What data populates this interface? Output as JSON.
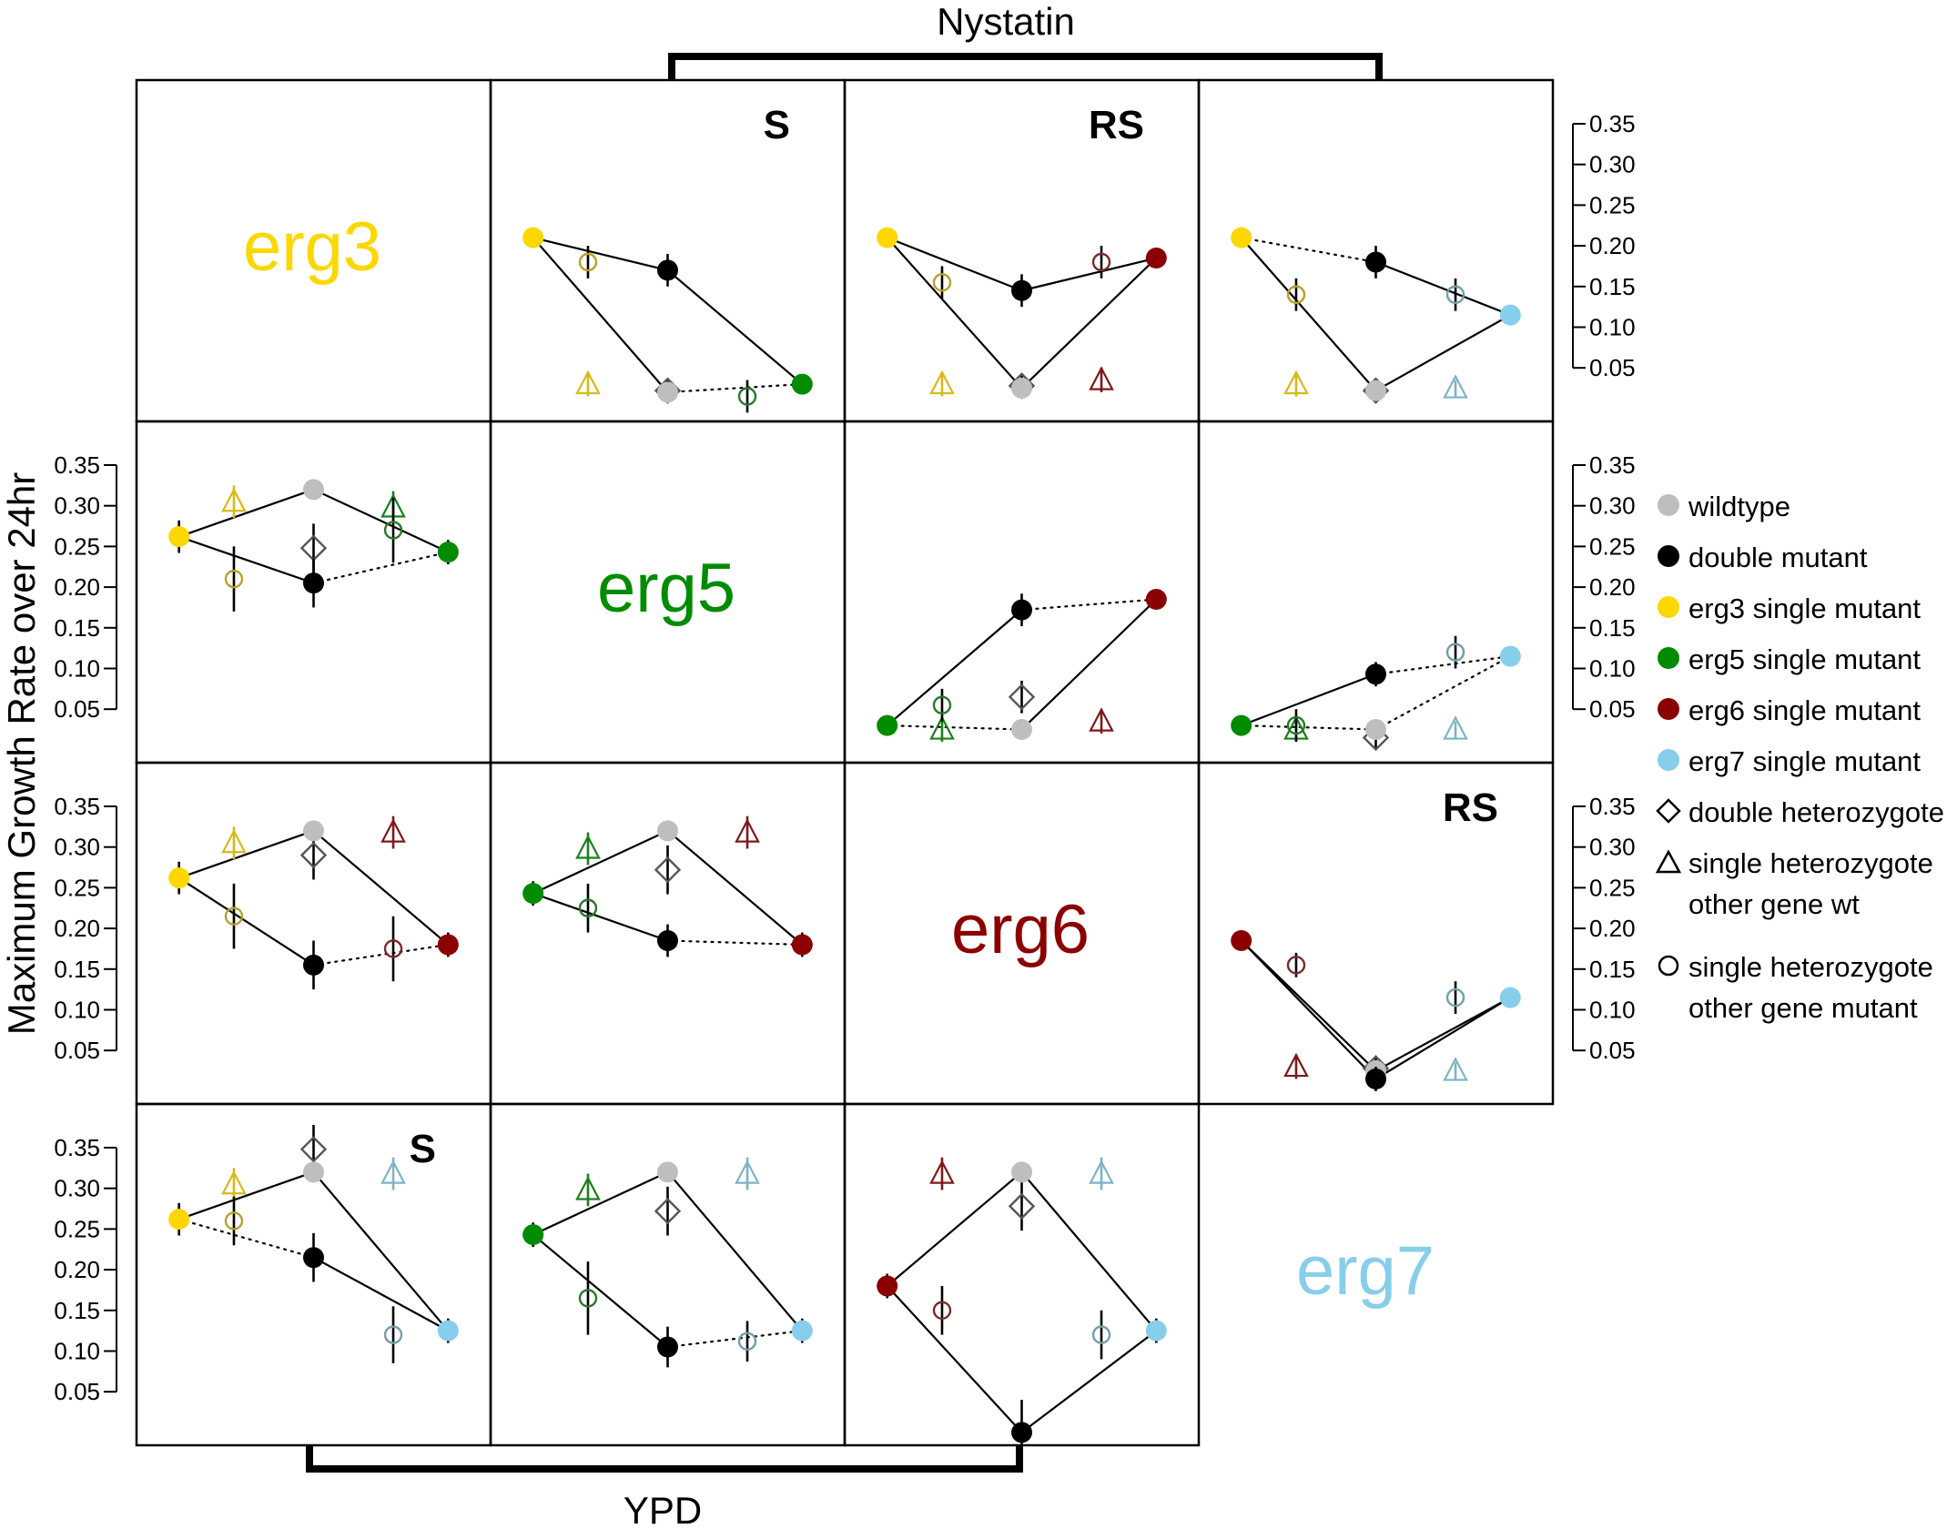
{
  "figure": {
    "y_axis_label": "Maximum Growth Rate over 24hr",
    "top_bracket_label": "Nystatin",
    "bottom_bracket_label": "YPD",
    "y_ticks": [
      "0.05",
      "0.10",
      "0.15",
      "0.20",
      "0.25",
      "0.30",
      "0.35"
    ],
    "ylim": [
      0,
      0.39
    ],
    "gene_labels": [
      {
        "name": "erg3",
        "color": "#ffd700"
      },
      {
        "name": "erg5",
        "color": "#008b00"
      },
      {
        "name": "erg6",
        "color": "#8b0000"
      },
      {
        "name": "erg7",
        "color": "#87ceeb"
      }
    ]
  },
  "legend": {
    "entries": [
      {
        "label": "wildtype",
        "symbol": "filled-circle",
        "color": "#bebebe"
      },
      {
        "label": "double mutant",
        "symbol": "filled-circle",
        "color": "#000000"
      },
      {
        "label": "erg3 single mutant",
        "symbol": "filled-circle",
        "color": "#ffd700"
      },
      {
        "label": "erg5 single mutant",
        "symbol": "filled-circle",
        "color": "#008b00"
      },
      {
        "label": "erg6 single mutant",
        "symbol": "filled-circle",
        "color": "#8b0000"
      },
      {
        "label": "erg7 single mutant",
        "symbol": "filled-circle",
        "color": "#87ceeb"
      },
      {
        "label": "double heterozygote",
        "symbol": "diamond",
        "color": "#000000"
      },
      {
        "label": "single heterozygote",
        "label2": "other gene wt",
        "symbol": "triangle",
        "color": "#000000"
      },
      {
        "label": "single heterozygote",
        "label2": "other gene mutant",
        "symbol": "open-circle",
        "color": "#000000"
      }
    ]
  },
  "chart_data": [
    {
      "type": "scatter",
      "environment": "Nystatin",
      "genes": [
        "erg3",
        "erg5"
      ],
      "annotation": "S",
      "A": {
        "y": 0.21,
        "e": 0.01
      },
      "AB": {
        "y": 0.17,
        "e": 0.02
      },
      "B": {
        "y": 0.03,
        "e": 0.01
      },
      "W": {
        "y": 0.02,
        "e": 0.01
      },
      "h_a": {
        "y": 0.18,
        "e": 0.02
      },
      "h_b": {
        "y": 0.015,
        "e": 0.02
      },
      "t_a": {
        "y": 0.03,
        "e": 0.015
      },
      "t_b": null,
      "d": {
        "y": 0.022,
        "e": 0.015
      },
      "lines": {
        "a_ab": "solid",
        "ab_b": "solid",
        "a_w": "solid",
        "w_b": "dotted"
      }
    },
    {
      "type": "scatter",
      "environment": "Nystatin",
      "genes": [
        "erg3",
        "erg6"
      ],
      "annotation": "RS",
      "A": {
        "y": 0.21,
        "e": 0.01
      },
      "AB": {
        "y": 0.145,
        "e": 0.02
      },
      "B": {
        "y": 0.185,
        "e": 0.01
      },
      "W": {
        "y": 0.025,
        "e": 0.01
      },
      "h_a": {
        "y": 0.155,
        "e": 0.02
      },
      "h_b": {
        "y": 0.18,
        "e": 0.02
      },
      "t_a": {
        "y": 0.03,
        "e": 0.015
      },
      "t_b": {
        "y": 0.035,
        "e": 0.015
      },
      "d": {
        "y": 0.028,
        "e": 0.015
      },
      "lines": {
        "a_ab": "solid",
        "ab_b": "solid",
        "a_w": "solid",
        "w_b": "solid"
      }
    },
    {
      "type": "scatter",
      "environment": "Nystatin",
      "genes": [
        "erg3",
        "erg7"
      ],
      "annotation": "",
      "A": {
        "y": 0.21,
        "e": 0.01
      },
      "AB": {
        "y": 0.18,
        "e": 0.02
      },
      "B": {
        "y": 0.115,
        "e": 0.01
      },
      "W": {
        "y": 0.022,
        "e": 0.01
      },
      "h_a": {
        "y": 0.14,
        "e": 0.02
      },
      "h_b": {
        "y": 0.14,
        "e": 0.02
      },
      "t_a": {
        "y": 0.03,
        "e": 0.015
      },
      "t_b": {
        "y": 0.025,
        "e": 0.01
      },
      "d": {
        "y": 0.022,
        "e": 0.015
      },
      "lines": {
        "a_ab": "dotted",
        "ab_b": "solid",
        "a_w": "solid",
        "w_b": "solid"
      }
    },
    {
      "type": "scatter",
      "environment": "YPD",
      "genes": [
        "erg3",
        "erg5"
      ],
      "annotation": "",
      "A": {
        "y": 0.262,
        "e": 0.02
      },
      "AB": {
        "y": 0.205,
        "e": 0.03
      },
      "B": {
        "y": 0.243,
        "e": 0.015
      },
      "W": {
        "y": 0.32,
        "e": 0.01
      },
      "h_a": {
        "y": 0.21,
        "e": 0.04
      },
      "h_b": {
        "y": 0.27,
        "e": 0.04
      },
      "t_a": {
        "y": 0.305,
        "e": 0.02
      },
      "t_b": {
        "y": 0.298,
        "e": 0.02
      },
      "d": {
        "y": 0.248,
        "e": 0.03
      },
      "lines": {
        "a_ab": "solid",
        "ab_b": "dotted",
        "a_w": "solid",
        "w_b": "solid"
      }
    },
    {
      "type": "scatter",
      "environment": "Nystatin",
      "genes": [
        "erg5",
        "erg6"
      ],
      "annotation": "",
      "A": {
        "y": 0.03,
        "e": 0.01
      },
      "AB": {
        "y": 0.172,
        "e": 0.02
      },
      "B": {
        "y": 0.185,
        "e": 0.01
      },
      "W": {
        "y": 0.025,
        "e": 0.01
      },
      "h_a": {
        "y": 0.055,
        "e": 0.02
      },
      "h_b": null,
      "t_a": {
        "y": 0.025,
        "e": 0.015
      },
      "t_b": {
        "y": 0.035,
        "e": 0.015
      },
      "d": {
        "y": 0.065,
        "e": 0.02
      },
      "lines": {
        "a_ab": "solid",
        "ab_b": "dotted",
        "a_w": "dotted",
        "w_b": "solid"
      }
    },
    {
      "type": "scatter",
      "environment": "Nystatin",
      "genes": [
        "erg5",
        "erg7"
      ],
      "annotation": "",
      "A": {
        "y": 0.03,
        "e": 0.01
      },
      "AB": {
        "y": 0.093,
        "e": 0.015
      },
      "B": {
        "y": 0.115,
        "e": 0.01
      },
      "W": {
        "y": 0.025,
        "e": 0.01
      },
      "h_a": {
        "y": 0.03,
        "e": 0.02
      },
      "h_b": {
        "y": 0.12,
        "e": 0.02
      },
      "t_a": {
        "y": 0.025,
        "e": 0.015
      },
      "t_b": {
        "y": 0.025,
        "e": 0.01
      },
      "d": {
        "y": 0.015,
        "e": 0.015
      },
      "lines": {
        "a_ab": "solid",
        "ab_b": "dotted",
        "a_w": "dotted",
        "w_b": "dotted"
      }
    },
    {
      "type": "scatter",
      "environment": "YPD",
      "genes": [
        "erg3",
        "erg6"
      ],
      "annotation": "",
      "A": {
        "y": 0.262,
        "e": 0.02
      },
      "AB": {
        "y": 0.155,
        "e": 0.03
      },
      "B": {
        "y": 0.18,
        "e": 0.015
      },
      "W": {
        "y": 0.32,
        "e": 0.01
      },
      "h_a": {
        "y": 0.215,
        "e": 0.04
      },
      "h_b": {
        "y": 0.175,
        "e": 0.04
      },
      "t_a": {
        "y": 0.305,
        "e": 0.02
      },
      "t_b": {
        "y": 0.318,
        "e": 0.02
      },
      "d": {
        "y": 0.29,
        "e": 0.03
      },
      "lines": {
        "a_ab": "solid",
        "ab_b": "dotted",
        "a_w": "solid",
        "w_b": "solid"
      }
    },
    {
      "type": "scatter",
      "environment": "YPD",
      "genes": [
        "erg5",
        "erg6"
      ],
      "annotation": "",
      "A": {
        "y": 0.243,
        "e": 0.015
      },
      "AB": {
        "y": 0.185,
        "e": 0.02
      },
      "B": {
        "y": 0.18,
        "e": 0.015
      },
      "W": {
        "y": 0.32,
        "e": 0.01
      },
      "h_a": {
        "y": 0.225,
        "e": 0.03
      },
      "h_b": null,
      "t_a": {
        "y": 0.298,
        "e": 0.02
      },
      "t_b": {
        "y": 0.318,
        "e": 0.02
      },
      "d": {
        "y": 0.272,
        "e": 0.03
      },
      "lines": {
        "a_ab": "solid",
        "ab_b": "dotted",
        "a_w": "solid",
        "w_b": "solid"
      }
    },
    {
      "type": "scatter",
      "environment": "Nystatin",
      "genes": [
        "erg6",
        "erg7"
      ],
      "annotation": "RS",
      "A": {
        "y": 0.185,
        "e": 0.01
      },
      "AB": {
        "y": 0.015,
        "e": 0.015
      },
      "B": {
        "y": 0.115,
        "e": 0.01
      },
      "W": {
        "y": 0.025,
        "e": 0.01
      },
      "h_a": {
        "y": 0.155,
        "e": 0.015
      },
      "h_b": {
        "y": 0.115,
        "e": 0.02
      },
      "t_a": {
        "y": 0.03,
        "e": 0.015
      },
      "t_b": {
        "y": 0.025,
        "e": 0.01
      },
      "d": {
        "y": 0.028,
        "e": 0.015
      },
      "lines": {
        "a_ab": "solid",
        "ab_b": "solid",
        "a_w": "solid",
        "w_b": "solid"
      }
    },
    {
      "type": "scatter",
      "environment": "YPD",
      "genes": [
        "erg3",
        "erg7"
      ],
      "annotation": "S",
      "A": {
        "y": 0.262,
        "e": 0.02
      },
      "AB": {
        "y": 0.215,
        "e": 0.03
      },
      "B": {
        "y": 0.125,
        "e": 0.015
      },
      "W": {
        "y": 0.32,
        "e": 0.01
      },
      "h_a": {
        "y": 0.26,
        "e": 0.03
      },
      "h_b": {
        "y": 0.12,
        "e": 0.035
      },
      "t_a": {
        "y": 0.305,
        "e": 0.02
      },
      "t_b": {
        "y": 0.318,
        "e": 0.02
      },
      "d": {
        "y": 0.348,
        "e": 0.03
      },
      "lines": {
        "a_ab": "dotted",
        "ab_b": "solid",
        "a_w": "solid",
        "w_b": "solid"
      }
    },
    {
      "type": "scatter",
      "environment": "YPD",
      "genes": [
        "erg5",
        "erg7"
      ],
      "annotation": "",
      "A": {
        "y": 0.243,
        "e": 0.015
      },
      "AB": {
        "y": 0.105,
        "e": 0.025
      },
      "B": {
        "y": 0.125,
        "e": 0.015
      },
      "W": {
        "y": 0.32,
        "e": 0.01
      },
      "h_a": {
        "y": 0.165,
        "e": 0.045
      },
      "h_b": {
        "y": 0.112,
        "e": 0.025
      },
      "t_a": {
        "y": 0.298,
        "e": 0.02
      },
      "t_b": {
        "y": 0.318,
        "e": 0.02
      },
      "d": {
        "y": 0.272,
        "e": 0.03
      },
      "lines": {
        "a_ab": "solid",
        "ab_b": "dotted",
        "a_w": "solid",
        "w_b": "solid"
      }
    },
    {
      "type": "scatter",
      "environment": "YPD",
      "genes": [
        "erg6",
        "erg7"
      ],
      "annotation": "",
      "A": {
        "y": 0.18,
        "e": 0.015
      },
      "AB": {
        "y": 0.0,
        "e": 0.04
      },
      "B": {
        "y": 0.125,
        "e": 0.015
      },
      "W": {
        "y": 0.32,
        "e": 0.01
      },
      "h_a": {
        "y": 0.15,
        "e": 0.03
      },
      "h_b": {
        "y": 0.12,
        "e": 0.03
      },
      "t_a": {
        "y": 0.318,
        "e": 0.02
      },
      "t_b": {
        "y": 0.318,
        "e": 0.02
      },
      "d": {
        "y": 0.278,
        "e": 0.03
      },
      "lines": {
        "a_ab": "solid",
        "ab_b": "solid",
        "a_w": "solid",
        "w_b": "solid"
      }
    }
  ]
}
